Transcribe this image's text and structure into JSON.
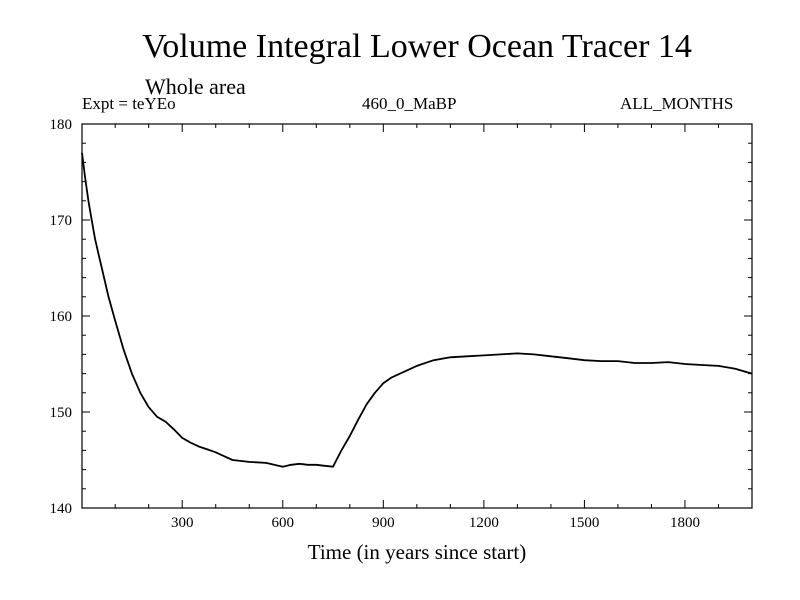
{
  "chart_data": {
    "type": "line",
    "title": "Volume Integral Lower Ocean Tracer 14",
    "subtitle": "Whole area",
    "annotations": {
      "left": "Expt = teYEo",
      "center": "460_0_MaBP",
      "right": "ALL_MONTHS"
    },
    "xlabel": "Time (in years since start)",
    "ylabel": "",
    "xlim": [
      1,
      2000
    ],
    "ylim": [
      140,
      180
    ],
    "xticks": [
      300,
      600,
      900,
      1200,
      1500,
      1800
    ],
    "xtick_labels": [
      "300",
      "600",
      "900",
      "1200",
      "1500",
      "1800"
    ],
    "yticks": [
      140,
      150,
      160,
      170,
      180
    ],
    "ytick_labels": [
      "140",
      "150",
      "160",
      "170",
      "180"
    ],
    "grid": false,
    "series": [
      {
        "name": "Tracer 14",
        "color": "#000000",
        "x": [
          1,
          10,
          20,
          30,
          40,
          50,
          60,
          80,
          100,
          125,
          150,
          175,
          200,
          225,
          250,
          275,
          300,
          325,
          350,
          375,
          400,
          425,
          450,
          500,
          550,
          600,
          625,
          650,
          675,
          700,
          725,
          750,
          775,
          800,
          825,
          850,
          875,
          900,
          925,
          950,
          1000,
          1050,
          1100,
          1150,
          1200,
          1250,
          1300,
          1350,
          1400,
          1450,
          1500,
          1550,
          1600,
          1650,
          1700,
          1750,
          1800,
          1850,
          1900,
          1950,
          2000
        ],
        "y": [
          177.0,
          174.5,
          172.0,
          170.0,
          168.0,
          166.5,
          165.0,
          162.0,
          159.5,
          156.5,
          154.0,
          152.0,
          150.5,
          149.5,
          149.0,
          148.2,
          147.3,
          146.8,
          146.4,
          146.1,
          145.8,
          145.4,
          145.0,
          144.8,
          144.7,
          144.3,
          144.5,
          144.6,
          144.5,
          144.5,
          144.4,
          144.3,
          146.0,
          147.5,
          149.2,
          150.8,
          152.0,
          153.0,
          153.6,
          154.0,
          154.8,
          155.4,
          155.7,
          155.8,
          155.9,
          156.0,
          156.1,
          156.0,
          155.8,
          155.6,
          155.4,
          155.3,
          155.3,
          155.1,
          155.1,
          155.2,
          155.0,
          154.9,
          154.8,
          154.5,
          154.0
        ]
      }
    ]
  }
}
